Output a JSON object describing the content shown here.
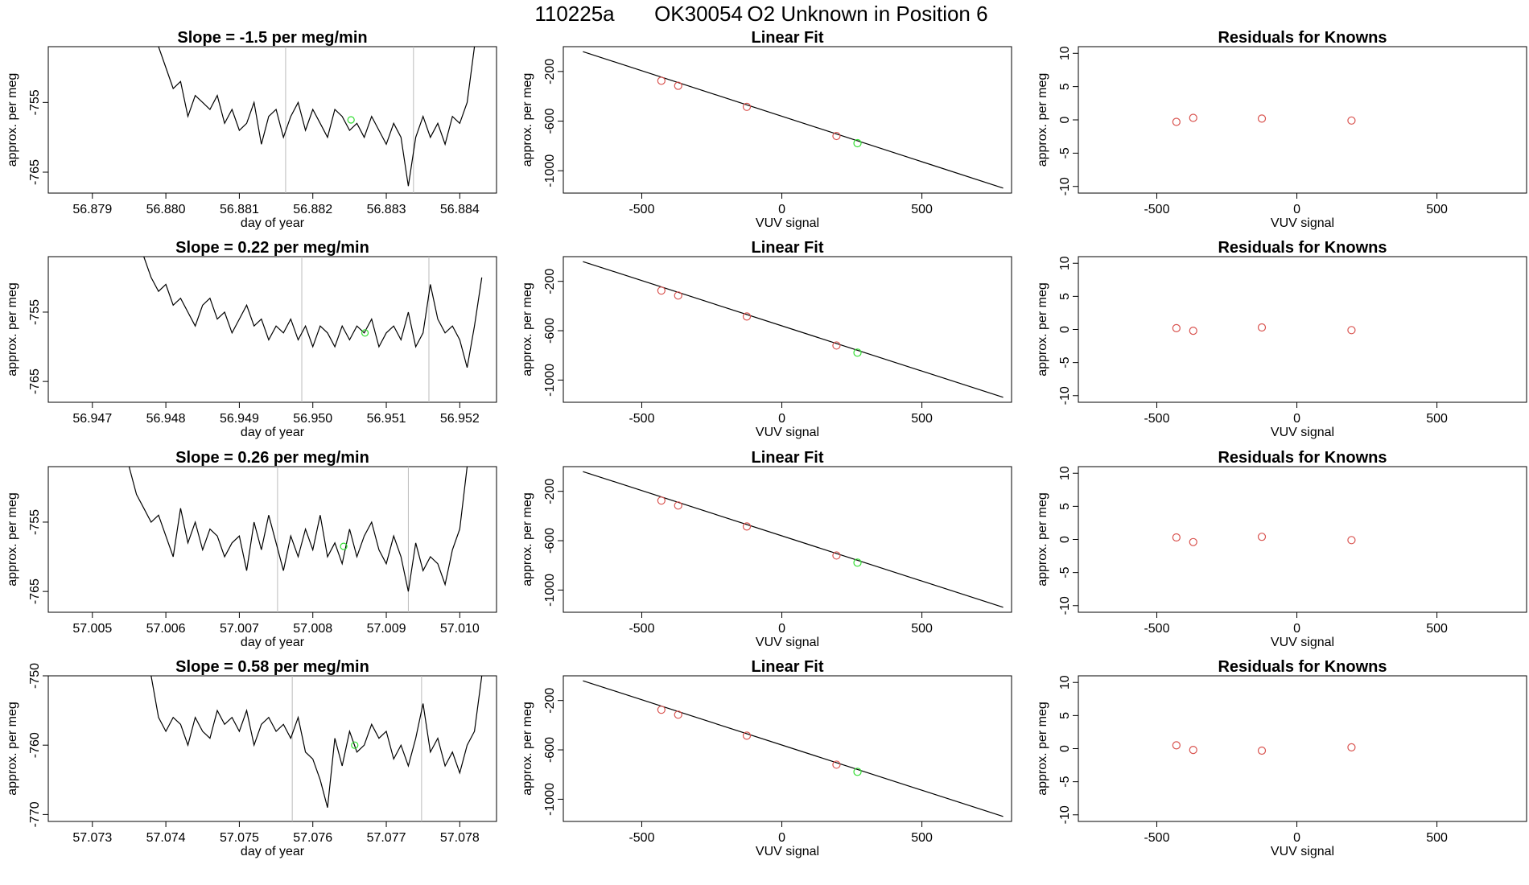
{
  "figure": {
    "title_parts": [
      "110225a",
      "OK30054",
      "O2 Unknown in Position  6"
    ]
  },
  "style": {
    "trace_color": "#000000",
    "marker_known_color": "#d9534f",
    "marker_unknown_color": "#33dd33",
    "vline_color": "#bbbbbb",
    "frame_color": "#000000"
  },
  "chart_data": [
    {
      "type": "line",
      "row": 1,
      "col": 1,
      "title": "Slope =  -1.5  per meg/min",
      "xlabel": "day of year",
      "ylabel": "approx. per meg",
      "xlim": [
        56.8784,
        56.8845
      ],
      "ylim": [
        -768,
        -747
      ],
      "xticks": [
        56.879,
        56.88,
        56.881,
        56.882,
        56.883,
        56.884
      ],
      "xtick_labels": [
        "56.879",
        "56.880",
        "56.881",
        "56.882",
        "56.883",
        "56.884"
      ],
      "yticks": [
        -755,
        -765
      ],
      "ytick_labels": [
        "-755",
        "-765"
      ],
      "vlines": [
        56.88163,
        56.88337
      ],
      "highlight": {
        "x": 56.88252,
        "y": -757.5
      },
      "x": [
        56.8799,
        56.88,
        56.8801,
        56.8802,
        56.8803,
        56.8804,
        56.8805,
        56.8806,
        56.8807,
        56.8808,
        56.8809,
        56.881,
        56.8811,
        56.8812,
        56.8813,
        56.8814,
        56.8815,
        56.8816,
        56.8817,
        56.8818,
        56.8819,
        56.882,
        56.8821,
        56.8822,
        56.8823,
        56.8824,
        56.8825,
        56.8826,
        56.8827,
        56.8828,
        56.8829,
        56.883,
        56.8831,
        56.8832,
        56.8833,
        56.8834,
        56.8835,
        56.8836,
        56.8837,
        56.8838,
        56.8839,
        56.884,
        56.8841,
        56.8842
      ],
      "y": [
        -747,
        -750,
        -753,
        -752,
        -757,
        -754,
        -755,
        -756,
        -754,
        -758,
        -756,
        -759,
        -758,
        -755,
        -761,
        -757,
        -756,
        -760,
        -757,
        -755,
        -759,
        -756,
        -758,
        -760,
        -756,
        -757,
        -759,
        -758,
        -760,
        -757,
        -759,
        -761,
        -758,
        -760,
        -767,
        -760,
        -757,
        -760,
        -758,
        -761,
        -757,
        -758,
        -755,
        -747
      ]
    },
    {
      "type": "scatter",
      "row": 1,
      "col": 2,
      "title": "Linear Fit",
      "xlabel": "VUV signal",
      "ylabel": "approx. per meg",
      "xlim": [
        -780,
        820
      ],
      "ylim": [
        -1180,
        0
      ],
      "xticks": [
        -500,
        0,
        500
      ],
      "xtick_labels": [
        "-500",
        "0",
        "500"
      ],
      "yticks": [
        -200,
        -600,
        -1000
      ],
      "ytick_labels": [
        "-200",
        "-600",
        "-1000"
      ],
      "fit_line": {
        "x": [
          -710,
          790
        ],
        "y": [
          -40,
          -1140
        ]
      },
      "series": [
        {
          "x": [
            -430,
            -370,
            -125,
            195
          ],
          "y": [
            -275,
            -315,
            -485,
            -720
          ]
        },
        {
          "x": [
            270
          ],
          "y": [
            -778
          ]
        }
      ]
    },
    {
      "type": "scatter",
      "row": 1,
      "col": 3,
      "title": "Residuals for Knowns",
      "xlabel": "VUV signal",
      "ylabel": "approx. per meg",
      "xlim": [
        -780,
        820
      ],
      "ylim": [
        -11,
        11
      ],
      "xticks": [
        -500,
        0,
        500
      ],
      "xtick_labels": [
        "-500",
        "0",
        "500"
      ],
      "yticks": [
        10,
        5,
        0,
        -5,
        -10
      ],
      "ytick_labels": [
        "10",
        "5",
        "0",
        "-5",
        "-10"
      ],
      "series": [
        {
          "x": [
            -430,
            -370,
            -125,
            195
          ],
          "y": [
            -0.3,
            0.3,
            0.2,
            -0.1
          ]
        }
      ]
    },
    {
      "type": "line",
      "row": 2,
      "col": 1,
      "title": "Slope =  0.22  per meg/min",
      "xlabel": "day of year",
      "ylabel": "approx. per meg",
      "xlim": [
        56.9464,
        56.9525
      ],
      "ylim": [
        -768,
        -747
      ],
      "xticks": [
        56.947,
        56.948,
        56.949,
        56.95,
        56.951,
        56.952
      ],
      "xtick_labels": [
        "56.947",
        "56.948",
        "56.949",
        "56.950",
        "56.951",
        "56.952"
      ],
      "yticks": [
        -755,
        -765
      ],
      "ytick_labels": [
        "-755",
        "-765"
      ],
      "vlines": [
        56.94985,
        56.95158
      ],
      "highlight": {
        "x": 56.95071,
        "y": -758
      },
      "x": [
        56.9477,
        56.9478,
        56.9479,
        56.948,
        56.9481,
        56.9482,
        56.9483,
        56.9484,
        56.9485,
        56.9486,
        56.9487,
        56.9488,
        56.9489,
        56.949,
        56.9491,
        56.9492,
        56.9493,
        56.9494,
        56.9495,
        56.9496,
        56.9497,
        56.9498,
        56.9499,
        56.95,
        56.9501,
        56.9502,
        56.9503,
        56.9504,
        56.9505,
        56.9506,
        56.9507,
        56.9508,
        56.9509,
        56.951,
        56.9511,
        56.9512,
        56.9513,
        56.9514,
        56.9515,
        56.9516,
        56.9517,
        56.9518,
        56.9519,
        56.952,
        56.9521,
        56.9522,
        56.9523
      ],
      "y": [
        -747,
        -750,
        -752,
        -751,
        -754,
        -753,
        -755,
        -757,
        -754,
        -753,
        -756,
        -755,
        -758,
        -756,
        -754,
        -757,
        -756,
        -759,
        -757,
        -758,
        -756,
        -759,
        -757,
        -760,
        -757,
        -758,
        -760,
        -757,
        -759,
        -757,
        -758,
        -756,
        -760,
        -758,
        -757,
        -759,
        -755,
        -760,
        -758,
        -751,
        -756,
        -758,
        -757,
        -759,
        -763,
        -757,
        -750
      ]
    },
    {
      "type": "scatter",
      "row": 2,
      "col": 2,
      "title": "Linear Fit",
      "xlabel": "VUV signal",
      "ylabel": "approx. per meg",
      "xlim": [
        -780,
        820
      ],
      "ylim": [
        -1180,
        0
      ],
      "xticks": [
        -500,
        0,
        500
      ],
      "xtick_labels": [
        "-500",
        "0",
        "500"
      ],
      "yticks": [
        -200,
        -600,
        -1000
      ],
      "ytick_labels": [
        "-200",
        "-600",
        "-1000"
      ],
      "fit_line": {
        "x": [
          -710,
          790
        ],
        "y": [
          -40,
          -1140
        ]
      },
      "series": [
        {
          "x": [
            -430,
            -370,
            -125,
            195
          ],
          "y": [
            -275,
            -315,
            -485,
            -720
          ]
        },
        {
          "x": [
            270
          ],
          "y": [
            -778
          ]
        }
      ]
    },
    {
      "type": "scatter",
      "row": 2,
      "col": 3,
      "title": "Residuals for Knowns",
      "xlabel": "VUV signal",
      "ylabel": "approx. per meg",
      "xlim": [
        -780,
        820
      ],
      "ylim": [
        -11,
        11
      ],
      "xticks": [
        -500,
        0,
        500
      ],
      "xtick_labels": [
        "-500",
        "0",
        "500"
      ],
      "yticks": [
        10,
        5,
        0,
        -5,
        -10
      ],
      "ytick_labels": [
        "10",
        "5",
        "0",
        "-5",
        "-10"
      ],
      "series": [
        {
          "x": [
            -430,
            -370,
            -125,
            195
          ],
          "y": [
            0.2,
            -0.2,
            0.3,
            -0.1
          ]
        }
      ]
    },
    {
      "type": "line",
      "row": 3,
      "col": 1,
      "title": "Slope =  0.26  per meg/min",
      "xlabel": "day of year",
      "ylabel": "approx. per meg",
      "xlim": [
        57.0044,
        57.0105
      ],
      "ylim": [
        -768,
        -747
      ],
      "xticks": [
        57.005,
        57.006,
        57.007,
        57.008,
        57.009,
        57.01
      ],
      "xtick_labels": [
        "57.005",
        "57.006",
        "57.007",
        "57.008",
        "57.009",
        "57.010"
      ],
      "yticks": [
        -755,
        -765
      ],
      "ytick_labels": [
        "-755",
        "-765"
      ],
      "vlines": [
        57.00752,
        57.0093
      ],
      "highlight": {
        "x": 57.00842,
        "y": -758.5
      },
      "x": [
        57.0055,
        57.0056,
        57.0057,
        57.0058,
        57.0059,
        57.006,
        57.0061,
        57.0062,
        57.0063,
        57.0064,
        57.0065,
        57.0066,
        57.0067,
        57.0068,
        57.0069,
        57.007,
        57.0071,
        57.0072,
        57.0073,
        57.0074,
        57.0075,
        57.0076,
        57.0077,
        57.0078,
        57.0079,
        57.008,
        57.0081,
        57.0082,
        57.0083,
        57.0084,
        57.0085,
        57.0086,
        57.0087,
        57.0088,
        57.0089,
        57.009,
        57.0091,
        57.0092,
        57.0093,
        57.0094,
        57.0095,
        57.0096,
        57.0097,
        57.0098,
        57.0099,
        57.01,
        57.0101
      ],
      "y": [
        -747,
        -751,
        -753,
        -755,
        -754,
        -757,
        -760,
        -753,
        -758,
        -755,
        -759,
        -756,
        -757,
        -760,
        -758,
        -757,
        -762,
        -755,
        -759,
        -754,
        -758,
        -762,
        -757,
        -760,
        -756,
        -759,
        -754,
        -760,
        -758,
        -761,
        -756,
        -760,
        -757,
        -755,
        -759,
        -761,
        -757,
        -760,
        -765,
        -758,
        -762,
        -760,
        -761,
        -764,
        -759,
        -756,
        -747
      ]
    },
    {
      "type": "scatter",
      "row": 3,
      "col": 2,
      "title": "Linear Fit",
      "xlabel": "VUV signal",
      "ylabel": "approx. per meg",
      "xlim": [
        -780,
        820
      ],
      "ylim": [
        -1180,
        0
      ],
      "xticks": [
        -500,
        0,
        500
      ],
      "xtick_labels": [
        "-500",
        "0",
        "500"
      ],
      "yticks": [
        -200,
        -600,
        -1000
      ],
      "ytick_labels": [
        "-200",
        "-600",
        "-1000"
      ],
      "fit_line": {
        "x": [
          -710,
          790
        ],
        "y": [
          -40,
          -1140
        ]
      },
      "series": [
        {
          "x": [
            -430,
            -370,
            -125,
            195
          ],
          "y": [
            -275,
            -315,
            -485,
            -720
          ]
        },
        {
          "x": [
            270
          ],
          "y": [
            -778
          ]
        }
      ]
    },
    {
      "type": "scatter",
      "row": 3,
      "col": 3,
      "title": "Residuals for Knowns",
      "xlabel": "VUV signal",
      "ylabel": "approx. per meg",
      "xlim": [
        -780,
        820
      ],
      "ylim": [
        -11,
        11
      ],
      "xticks": [
        -500,
        0,
        500
      ],
      "xtick_labels": [
        "-500",
        "0",
        "500"
      ],
      "yticks": [
        10,
        5,
        0,
        -5,
        -10
      ],
      "ytick_labels": [
        "10",
        "5",
        "0",
        "-5",
        "-10"
      ],
      "series": [
        {
          "x": [
            -430,
            -370,
            -125,
            195
          ],
          "y": [
            0.3,
            -0.4,
            0.4,
            -0.1
          ]
        }
      ]
    },
    {
      "type": "line",
      "row": 4,
      "col": 1,
      "title": "Slope =  0.58  per meg/min",
      "xlabel": "day of year",
      "ylabel": "approx. per meg",
      "xlim": [
        57.0724,
        57.0785
      ],
      "ylim": [
        -771,
        -750
      ],
      "xticks": [
        57.073,
        57.074,
        57.075,
        57.076,
        57.077,
        57.078
      ],
      "xtick_labels": [
        "57.073",
        "57.074",
        "57.075",
        "57.076",
        "57.077",
        "57.078"
      ],
      "yticks": [
        -750,
        -760,
        -770
      ],
      "ytick_labels": [
        "-750",
        "-760",
        "-770"
      ],
      "vlines": [
        57.07572,
        57.07748
      ],
      "highlight": {
        "x": 57.07657,
        "y": -760
      },
      "x": [
        57.0738,
        57.0739,
        57.074,
        57.0741,
        57.0742,
        57.0743,
        57.0744,
        57.0745,
        57.0746,
        57.0747,
        57.0748,
        57.0749,
        57.075,
        57.0751,
        57.0752,
        57.0753,
        57.0754,
        57.0755,
        57.0756,
        57.0757,
        57.0758,
        57.0759,
        57.076,
        57.0761,
        57.0762,
        57.0763,
        57.0764,
        57.0765,
        57.0766,
        57.0767,
        57.0768,
        57.0769,
        57.077,
        57.0771,
        57.0772,
        57.0773,
        57.0774,
        57.0775,
        57.0776,
        57.0777,
        57.0778,
        57.0779,
        57.078,
        57.0781,
        57.0782,
        57.0783
      ],
      "y": [
        -750,
        -756,
        -758,
        -756,
        -757,
        -760,
        -756,
        -758,
        -759,
        -755,
        -757,
        -756,
        -758,
        -755,
        -760,
        -757,
        -756,
        -758,
        -757,
        -759,
        -756,
        -761,
        -762,
        -765,
        -769,
        -759,
        -763,
        -758,
        -761,
        -760,
        -757,
        -759,
        -758,
        -762,
        -760,
        -763,
        -759,
        -754,
        -761,
        -759,
        -763,
        -761,
        -764,
        -760,
        -758,
        -750
      ]
    },
    {
      "type": "scatter",
      "row": 4,
      "col": 2,
      "title": "Linear Fit",
      "xlabel": "VUV signal",
      "ylabel": "approx. per meg",
      "xlim": [
        -780,
        820
      ],
      "ylim": [
        -1180,
        0
      ],
      "xticks": [
        -500,
        0,
        500
      ],
      "xtick_labels": [
        "-500",
        "0",
        "500"
      ],
      "yticks": [
        -200,
        -600,
        -1000
      ],
      "ytick_labels": [
        "-200",
        "-600",
        "-1000"
      ],
      "fit_line": {
        "x": [
          -710,
          790
        ],
        "y": [
          -40,
          -1140
        ]
      },
      "series": [
        {
          "x": [
            -430,
            -370,
            -125,
            195
          ],
          "y": [
            -275,
            -315,
            -485,
            -720
          ]
        },
        {
          "x": [
            270
          ],
          "y": [
            -778
          ]
        }
      ]
    },
    {
      "type": "scatter",
      "row": 4,
      "col": 3,
      "title": "Residuals for Knowns",
      "xlabel": "VUV signal",
      "ylabel": "approx. per meg",
      "xlim": [
        -780,
        820
      ],
      "ylim": [
        -11,
        11
      ],
      "xticks": [
        -500,
        0,
        500
      ],
      "xtick_labels": [
        "-500",
        "0",
        "500"
      ],
      "yticks": [
        10,
        5,
        0,
        -5,
        -10
      ],
      "ytick_labels": [
        "10",
        "5",
        "0",
        "-5",
        "-10"
      ],
      "series": [
        {
          "x": [
            -430,
            -370,
            -125,
            195
          ],
          "y": [
            0.5,
            -0.2,
            -0.3,
            0.2
          ]
        }
      ]
    }
  ]
}
